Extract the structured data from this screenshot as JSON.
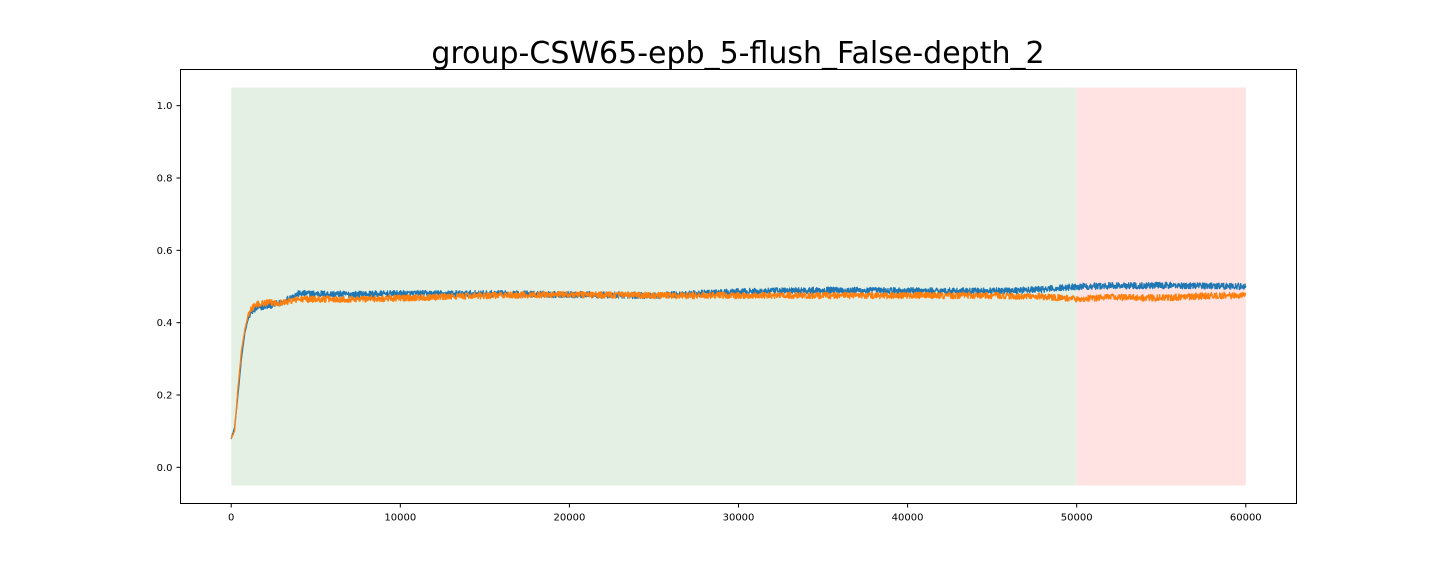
{
  "chart_data": {
    "type": "line",
    "title": "group-CSW65-epb_5-flush_False-depth_2",
    "xlabel": "",
    "ylabel": "",
    "xlim": [
      -3000,
      63000
    ],
    "ylim": [
      -0.1,
      1.1
    ],
    "x_ticks": [
      0,
      10000,
      20000,
      30000,
      40000,
      50000,
      60000
    ],
    "x_tick_labels": [
      "0",
      "10000",
      "20000",
      "30000",
      "40000",
      "50000",
      "60000"
    ],
    "y_ticks": [
      0.0,
      0.2,
      0.4,
      0.6,
      0.8,
      1.0
    ],
    "y_tick_labels": [
      "0.0",
      "0.2",
      "0.4",
      "0.6",
      "0.8",
      "1.0"
    ],
    "grid": false,
    "legend": "none",
    "regions": [
      {
        "x": [
          0,
          50000
        ],
        "y": [
          -0.05,
          1.05
        ],
        "color": "#e5f0e5"
      },
      {
        "x": [
          50000,
          60000
        ],
        "y": [
          -0.05,
          1.05
        ],
        "color": "#ffe2e2"
      }
    ],
    "series": [
      {
        "color": "#1f77b4",
        "noise": 0.009,
        "x": [
          0,
          200,
          400,
          600,
          800,
          1000,
          1200,
          1500,
          2000,
          2500,
          3000,
          3500,
          4000,
          5000,
          7000,
          10000,
          15000,
          20000,
          25000,
          30000,
          35000,
          40000,
          45000,
          48000,
          50000,
          52000,
          55000,
          58000,
          60000
        ],
        "y": [
          0.08,
          0.11,
          0.2,
          0.3,
          0.37,
          0.41,
          0.43,
          0.44,
          0.445,
          0.45,
          0.455,
          0.47,
          0.48,
          0.48,
          0.478,
          0.48,
          0.48,
          0.478,
          0.475,
          0.485,
          0.49,
          0.488,
          0.487,
          0.492,
          0.5,
          0.502,
          0.503,
          0.502,
          0.5
        ]
      },
      {
        "color": "#ff7f0e",
        "noise": 0.009,
        "x": [
          0,
          200,
          400,
          600,
          800,
          1000,
          1200,
          1500,
          2000,
          2500,
          3000,
          3500,
          4000,
          5000,
          7000,
          10000,
          15000,
          20000,
          25000,
          30000,
          35000,
          40000,
          45000,
          48000,
          50000,
          52000,
          55000,
          58000,
          60000
        ],
        "y": [
          0.08,
          0.1,
          0.22,
          0.32,
          0.38,
          0.42,
          0.44,
          0.45,
          0.455,
          0.455,
          0.455,
          0.46,
          0.465,
          0.465,
          0.465,
          0.468,
          0.475,
          0.478,
          0.475,
          0.475,
          0.475,
          0.475,
          0.475,
          0.472,
          0.465,
          0.47,
          0.468,
          0.475,
          0.475
        ]
      }
    ]
  }
}
